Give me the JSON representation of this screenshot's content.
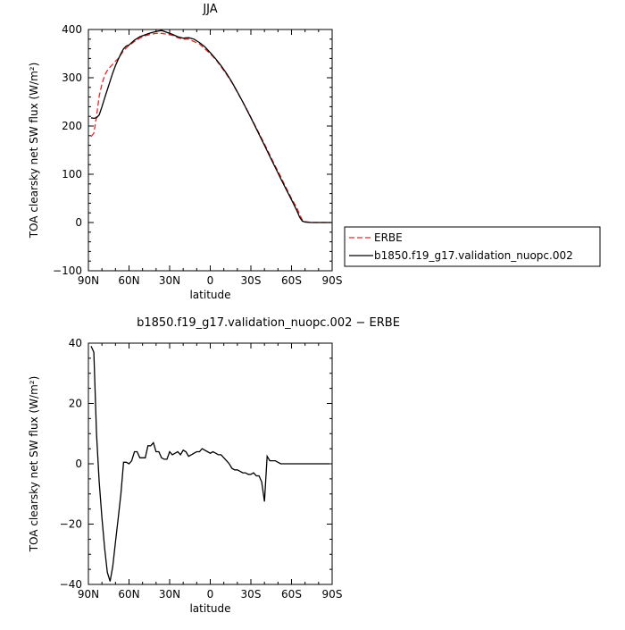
{
  "chart_data": [
    {
      "type": "line",
      "title": "JJA",
      "xlabel": "latitude",
      "ylabel": "TOA clearsky net SW flux (W/m²)",
      "xlim": [
        90,
        -90
      ],
      "ylim": [
        -100,
        400
      ],
      "x_ticks": [
        {
          "value": 90,
          "label": "90N"
        },
        {
          "value": 60,
          "label": "60N"
        },
        {
          "value": 30,
          "label": "30N"
        },
        {
          "value": 0,
          "label": "0"
        },
        {
          "value": -30,
          "label": "30S"
        },
        {
          "value": -60,
          "label": "60S"
        },
        {
          "value": -90,
          "label": "90S"
        }
      ],
      "y_ticks": [
        {
          "value": 400,
          "label": "400"
        },
        {
          "value": 300,
          "label": "300"
        },
        {
          "value": 200,
          "label": "200"
        },
        {
          "value": 100,
          "label": "100"
        },
        {
          "value": 0,
          "label": "0"
        },
        {
          "value": -100,
          "label": "−100"
        }
      ],
      "legend": "right",
      "series": [
        {
          "name": "ERBE",
          "color": "#e8262a",
          "dash": "dashed",
          "x": [
            88,
            86,
            84,
            82,
            80,
            78,
            76,
            74,
            72,
            70,
            68,
            66,
            64,
            62,
            60,
            56,
            52,
            48,
            44,
            40,
            36,
            32,
            28,
            24,
            20,
            16,
            12,
            8,
            4,
            0,
            -4,
            -8,
            -12,
            -16,
            -20,
            -24,
            -28,
            -32,
            -36,
            -40,
            -44,
            -48,
            -52,
            -56,
            -60,
            -62,
            -64,
            -66,
            -68,
            -70,
            -74,
            -78,
            -82,
            -86,
            -89
          ],
          "y": [
            178,
            185,
            220,
            262,
            287,
            305,
            315,
            322,
            328,
            334,
            340,
            348,
            356,
            362,
            367,
            375,
            382,
            387,
            390,
            392,
            392,
            390,
            388,
            383,
            380,
            380,
            375,
            370,
            360,
            350,
            338,
            323,
            307,
            290,
            270,
            250,
            229,
            207,
            185,
            163,
            140,
            117,
            95,
            72,
            50,
            40,
            30,
            17,
            5,
            2,
            0,
            0,
            0,
            0,
            0
          ]
        },
        {
          "name": "b1850.f19_g17.validation_nuopc.002",
          "color": "#000000",
          "dash": "solid",
          "x": [
            88,
            86,
            84,
            82,
            80,
            78,
            76,
            74,
            72,
            70,
            68,
            66,
            64,
            62,
            60,
            56,
            52,
            48,
            44,
            40,
            36,
            32,
            28,
            24,
            20,
            16,
            12,
            8,
            4,
            0,
            -4,
            -8,
            -12,
            -16,
            -20,
            -24,
            -28,
            -32,
            -36,
            -40,
            -44,
            -48,
            -52,
            -56,
            -60,
            -62,
            -64,
            -66,
            -68,
            -70,
            -74,
            -78,
            -82,
            -86,
            -89
          ],
          "y": [
            217,
            216,
            217,
            223,
            240,
            258,
            275,
            293,
            310,
            325,
            338,
            350,
            360,
            366,
            368,
            378,
            385,
            389,
            393,
            396,
            398,
            394,
            390,
            385,
            382,
            383,
            380,
            373,
            364,
            352,
            339,
            325,
            309,
            291,
            271,
            250,
            228,
            206,
            183,
            160,
            137,
            114,
            91,
            69,
            47,
            36,
            24,
            11,
            3,
            1,
            0,
            0,
            0,
            0,
            0
          ]
        }
      ]
    },
    {
      "type": "line",
      "title": "b1850.f19_g17.validation_nuopc.002 − ERBE",
      "xlabel": "latitude",
      "ylabel": "TOA clearsky net SW flux (W/m²)",
      "xlim": [
        90,
        -90
      ],
      "ylim": [
        -40,
        40
      ],
      "x_ticks": [
        {
          "value": 90,
          "label": "90N"
        },
        {
          "value": 60,
          "label": "60N"
        },
        {
          "value": 30,
          "label": "30N"
        },
        {
          "value": 0,
          "label": "0"
        },
        {
          "value": -30,
          "label": "30S"
        },
        {
          "value": -60,
          "label": "60S"
        },
        {
          "value": -90,
          "label": "90S"
        }
      ],
      "y_ticks": [
        {
          "value": 40,
          "label": "40"
        },
        {
          "value": 20,
          "label": "20"
        },
        {
          "value": 0,
          "label": "0"
        },
        {
          "value": -20,
          "label": "−20"
        },
        {
          "value": -40,
          "label": "−40"
        }
      ],
      "series": [
        {
          "color": "#000000",
          "dash": "solid",
          "x": [
            88,
            86,
            84,
            82,
            80,
            78,
            76,
            74,
            72,
            70,
            68,
            66,
            64,
            62,
            60,
            58,
            56,
            54,
            52,
            50,
            48,
            46,
            44,
            42,
            40,
            38,
            36,
            34,
            32,
            30,
            28,
            26,
            24,
            22,
            20,
            18,
            16,
            14,
            12,
            10,
            8,
            6,
            4,
            2,
            0,
            -2,
            -4,
            -6,
            -8,
            -10,
            -12,
            -14,
            -16,
            -18,
            -20,
            -22,
            -24,
            -26,
            -28,
            -30,
            -32,
            -34,
            -36,
            -38,
            -40,
            -42,
            -44,
            -46,
            -48,
            -50,
            -52,
            -54,
            -56,
            -58,
            -60,
            -62,
            -64,
            -66,
            -68,
            -70,
            -72,
            -74,
            -76,
            -78,
            -80,
            -82,
            -84,
            -86,
            -88
          ],
          "y": [
            39,
            37,
            10,
            -6,
            -18,
            -28,
            -36,
            -39,
            -34,
            -26,
            -18,
            -10,
            0.5,
            0.5,
            0,
            1,
            4,
            4,
            2,
            2,
            2,
            6,
            6,
            7,
            4,
            4,
            2,
            1.5,
            1.5,
            4,
            3,
            3.5,
            4,
            3,
            4.5,
            4,
            2.5,
            3,
            3.5,
            4,
            4,
            5,
            4.5,
            4,
            3.5,
            4,
            3.5,
            3,
            3,
            2,
            1,
            0,
            -1.5,
            -2,
            -2,
            -2.5,
            -3,
            -3,
            -3.5,
            -3.5,
            -3,
            -4,
            -4,
            -6,
            -12.5,
            2.5,
            1,
            1,
            1,
            0.5,
            0,
            0,
            0,
            0,
            0,
            0,
            0,
            0,
            0,
            0,
            0,
            0,
            0,
            0,
            0,
            0,
            0,
            0,
            0
          ]
        }
      ]
    }
  ]
}
